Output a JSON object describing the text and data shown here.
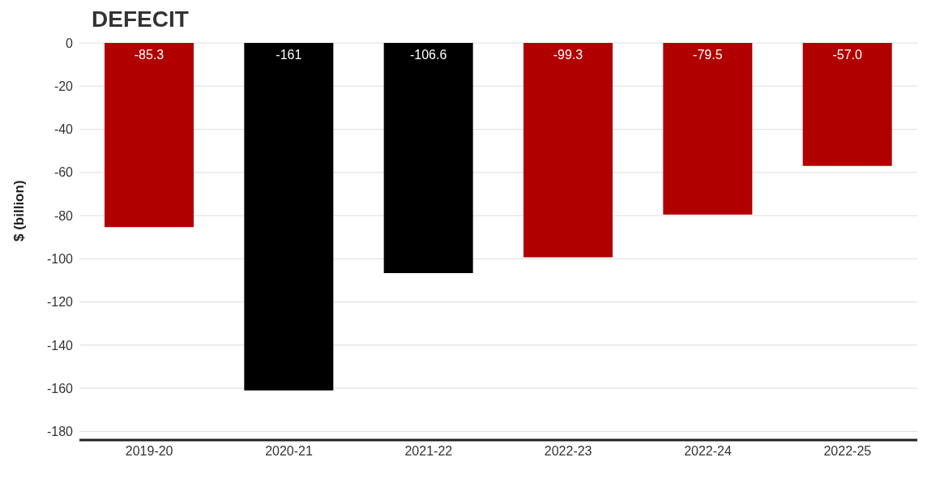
{
  "chart_data": {
    "type": "bar",
    "title": "DEFECIT",
    "ylabel": "$ (billion)",
    "categories": [
      "2019-20",
      "2020-21",
      "2021-22",
      "2022-23",
      "2022-24",
      "2022-25"
    ],
    "values": [
      -85.3,
      -161,
      -106.6,
      -99.3,
      -79.5,
      -57.0
    ],
    "colors": [
      "#b00000",
      "#000000",
      "#000000",
      "#b00000",
      "#b00000",
      "#b00000"
    ],
    "value_labels": [
      "-85.3",
      "-161",
      "-106.6",
      "-99.3",
      "-79.5",
      "-57.0"
    ],
    "ylim": [
      -184,
      0
    ],
    "yticks": [
      0,
      -20,
      -40,
      -60,
      -80,
      -100,
      -120,
      -140,
      -160,
      -180
    ],
    "grid": "y",
    "legend": false
  }
}
